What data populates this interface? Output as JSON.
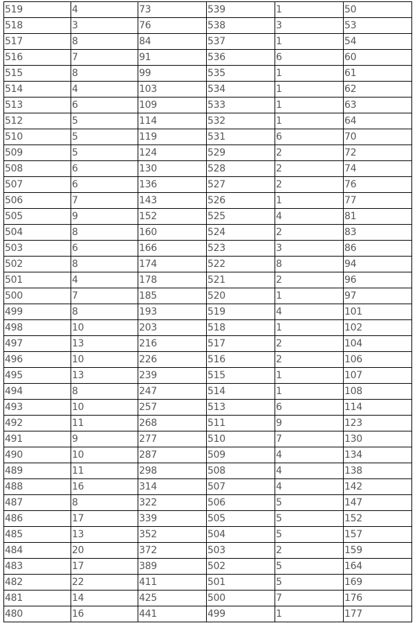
{
  "table": {
    "rows": [
      [
        "519",
        "4",
        "73",
        "539",
        "1",
        "50"
      ],
      [
        "518",
        "3",
        "76",
        "538",
        "3",
        "53"
      ],
      [
        "517",
        "8",
        "84",
        "537",
        "1",
        "54"
      ],
      [
        "516",
        "7",
        "91",
        "536",
        "6",
        "60"
      ],
      [
        "515",
        "8",
        "99",
        "535",
        "1",
        "61"
      ],
      [
        "514",
        "4",
        "103",
        "534",
        "1",
        "62"
      ],
      [
        "513",
        "6",
        "109",
        "533",
        "1",
        "63"
      ],
      [
        "512",
        "5",
        "114",
        "532",
        "1",
        "64"
      ],
      [
        "510",
        "5",
        "119",
        "531",
        "6",
        "70"
      ],
      [
        "509",
        "5",
        "124",
        "529",
        "2",
        "72"
      ],
      [
        "508",
        "6",
        "130",
        "528",
        "2",
        "74"
      ],
      [
        "507",
        "6",
        "136",
        "527",
        "2",
        "76"
      ],
      [
        "506",
        "7",
        "143",
        "526",
        "1",
        "77"
      ],
      [
        "505",
        "9",
        "152",
        "525",
        "4",
        "81"
      ],
      [
        "504",
        "8",
        "160",
        "524",
        "2",
        "83"
      ],
      [
        "503",
        "6",
        "166",
        "523",
        "3",
        "86"
      ],
      [
        "502",
        "8",
        "174",
        "522",
        "8",
        "94"
      ],
      [
        "501",
        "4",
        "178",
        "521",
        "2",
        "96"
      ],
      [
        "500",
        "7",
        "185",
        "520",
        "1",
        "97"
      ],
      [
        "499",
        "8",
        "193",
        "519",
        "4",
        "101"
      ],
      [
        "498",
        "10",
        "203",
        "518",
        "1",
        "102"
      ],
      [
        "497",
        "13",
        "216",
        "517",
        "2",
        "104"
      ],
      [
        "496",
        "10",
        "226",
        "516",
        "2",
        "106"
      ],
      [
        "495",
        "13",
        "239",
        "515",
        "1",
        "107"
      ],
      [
        "494",
        "8",
        "247",
        "514",
        "1",
        "108"
      ],
      [
        "493",
        "10",
        "257",
        "513",
        "6",
        "114"
      ],
      [
        "492",
        "11",
        "268",
        "511",
        "9",
        "123"
      ],
      [
        "491",
        "9",
        "277",
        "510",
        "7",
        "130"
      ],
      [
        "490",
        "10",
        "287",
        "509",
        "4",
        "134"
      ],
      [
        "489",
        "11",
        "298",
        "508",
        "4",
        "138"
      ],
      [
        "488",
        "16",
        "314",
        "507",
        "4",
        "142"
      ],
      [
        "487",
        "8",
        "322",
        "506",
        "5",
        "147"
      ],
      [
        "486",
        "17",
        "339",
        "505",
        "5",
        "152"
      ],
      [
        "485",
        "13",
        "352",
        "504",
        "5",
        "157"
      ],
      [
        "484",
        "20",
        "372",
        "503",
        "2",
        "159"
      ],
      [
        "483",
        "17",
        "389",
        "502",
        "5",
        "164"
      ],
      [
        "482",
        "22",
        "411",
        "501",
        "5",
        "169"
      ],
      [
        "481",
        "14",
        "425",
        "500",
        "7",
        "176"
      ],
      [
        "480",
        "16",
        "441",
        "499",
        "1",
        "177"
      ]
    ]
  },
  "colors": {
    "text": "#555555",
    "border": "#000000"
  }
}
